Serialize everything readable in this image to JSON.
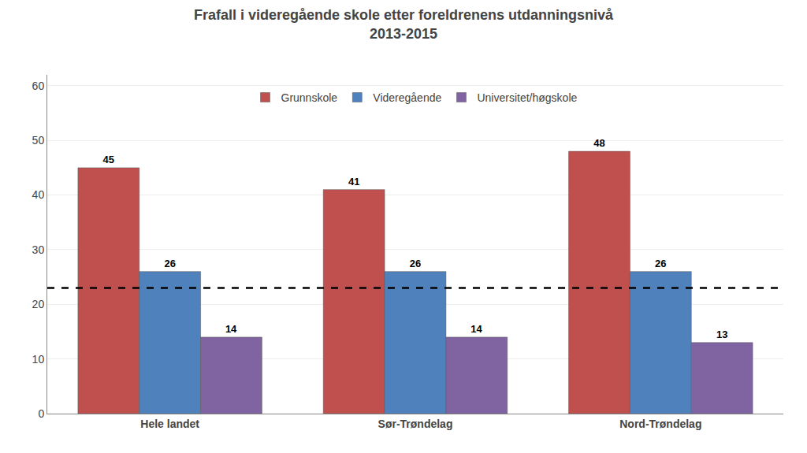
{
  "chart_data": {
    "type": "bar",
    "title": "Frafall i videregående skole etter foreldrenens utdanningsnivå\n2013-2015",
    "categories": [
      "Hele landet",
      "Sør-Trøndelag",
      "Nord-Trøndelag"
    ],
    "series": [
      {
        "name": "Grunnskole",
        "color": "#c0504d",
        "values": [
          45,
          41,
          48
        ]
      },
      {
        "name": "Videregående",
        "color": "#4f81bd",
        "values": [
          26,
          26,
          26
        ]
      },
      {
        "name": "Universitet/høgskole",
        "color": "#8064a2",
        "values": [
          14,
          14,
          13
        ]
      }
    ],
    "reference_line": {
      "value": 23,
      "line_style": "dashed",
      "color": "#000000"
    },
    "ylim": [
      0,
      62
    ],
    "yticks": [
      0,
      10,
      20,
      30,
      40,
      50,
      60
    ],
    "grid": true,
    "legend": "top",
    "data_labels": true
  }
}
